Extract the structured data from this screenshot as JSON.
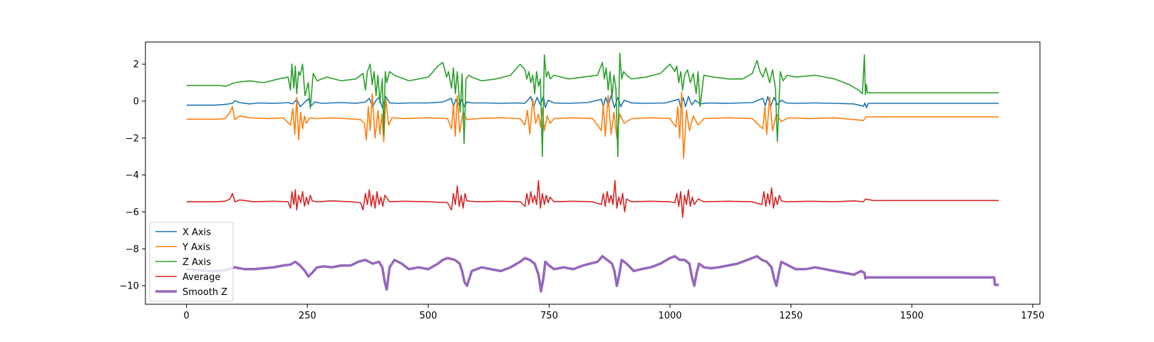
{
  "chart_data": {
    "type": "line",
    "title": "",
    "xlabel": "",
    "ylabel": "",
    "xlim": [
      -85,
      1765
    ],
    "ylim": [
      -11.0,
      3.2
    ],
    "xticks": [
      0,
      250,
      500,
      750,
      1000,
      1250,
      1500,
      1750
    ],
    "yticks": [
      2,
      0,
      -2,
      -4,
      -6,
      -8,
      -10
    ],
    "xtick_labels": [
      "0",
      "250",
      "500",
      "750",
      "1000",
      "1250",
      "1500",
      "1750"
    ],
    "ytick_labels": [
      "2",
      "0",
      "−2",
      "−4",
      "−6",
      "−8",
      "−10"
    ],
    "grid": false,
    "legend_position": "lower-left",
    "series": [
      {
        "name": "X Axis",
        "color": "#1f77b4",
        "x": [
          0,
          60,
          80,
          95,
          100,
          110,
          130,
          150,
          180,
          200,
          210,
          220,
          228,
          235,
          245,
          252,
          258,
          265,
          280,
          300,
          320,
          350,
          370,
          378,
          385,
          392,
          398,
          405,
          412,
          420,
          440,
          460,
          500,
          530,
          548,
          552,
          557,
          562,
          568,
          575,
          580,
          590,
          620,
          650,
          680,
          700,
          712,
          718,
          725,
          732,
          738,
          742,
          748,
          760,
          790,
          830,
          858,
          862,
          867,
          872,
          878,
          885,
          892,
          898,
          905,
          920,
          950,
          990,
          1018,
          1022,
          1027,
          1032,
          1038,
          1045,
          1052,
          1062,
          1080,
          1120,
          1170,
          1192,
          1197,
          1202,
          1208,
          1215,
          1222,
          1230,
          1240,
          1260,
          1300,
          1340,
          1380,
          1400,
          1403,
          1406,
          1410,
          1500,
          1600,
          1680
        ],
        "values": [
          -0.22,
          -0.22,
          -0.18,
          -0.12,
          0.02,
          -0.08,
          -0.15,
          -0.1,
          -0.12,
          -0.1,
          -0.08,
          -0.15,
          0.1,
          -0.3,
          -0.05,
          0.12,
          -0.25,
          -0.05,
          -0.12,
          -0.1,
          -0.08,
          -0.12,
          -0.05,
          0.15,
          -0.3,
          0.05,
          0.2,
          -0.35,
          0.25,
          -0.1,
          -0.12,
          -0.1,
          -0.1,
          -0.05,
          0.15,
          -0.3,
          0.1,
          -0.2,
          0.12,
          -0.3,
          -0.05,
          -0.1,
          -0.1,
          -0.12,
          -0.1,
          -0.12,
          0.25,
          -0.3,
          0.2,
          -0.2,
          0.28,
          -0.35,
          0.05,
          -0.1,
          -0.12,
          -0.08,
          0.1,
          -0.3,
          0.2,
          -0.25,
          0.3,
          -0.35,
          0.2,
          -0.3,
          0.05,
          -0.1,
          -0.12,
          -0.1,
          0.1,
          -0.35,
          0.2,
          -0.3,
          0.25,
          -0.2,
          0.05,
          -0.15,
          -0.1,
          -0.12,
          -0.08,
          0.15,
          -0.25,
          0.25,
          -0.3,
          0.2,
          -0.2,
          0.05,
          -0.1,
          -0.12,
          -0.1,
          -0.12,
          -0.15,
          -0.28,
          -0.1,
          -0.35,
          -0.12,
          -0.12,
          -0.12,
          -0.12
        ]
      },
      {
        "name": "Y Axis",
        "color": "#ff7f0e",
        "x": [
          0,
          60,
          80,
          90,
          95,
          100,
          110,
          130,
          170,
          200,
          215,
          220,
          224,
          228,
          232,
          236,
          240,
          244,
          248,
          255,
          270,
          300,
          330,
          360,
          368,
          372,
          376,
          380,
          384,
          390,
          396,
          400,
          404,
          408,
          412,
          418,
          425,
          450,
          500,
          540,
          548,
          552,
          556,
          560,
          565,
          572,
          580,
          600,
          650,
          690,
          700,
          705,
          710,
          716,
          722,
          728,
          732,
          736,
          740,
          746,
          752,
          760,
          800,
          840,
          858,
          862,
          866,
          872,
          878,
          884,
          890,
          896,
          905,
          920,
          960,
          1000,
          1012,
          1016,
          1020,
          1024,
          1028,
          1034,
          1040,
          1048,
          1058,
          1070,
          1120,
          1170,
          1192,
          1196,
          1200,
          1206,
          1212,
          1220,
          1230,
          1245,
          1290,
          1340,
          1380,
          1400,
          1405,
          1420,
          1500,
          1600,
          1680
        ],
        "values": [
          -0.98,
          -0.98,
          -0.95,
          -0.6,
          -0.3,
          -1.0,
          -0.8,
          -0.9,
          -0.95,
          -0.9,
          -1.3,
          -0.4,
          -1.8,
          0.2,
          -2.1,
          -0.6,
          -1.5,
          -0.8,
          -1.2,
          -0.9,
          -0.95,
          -0.9,
          -0.95,
          -1.0,
          -1.2,
          -2.1,
          -0.3,
          -1.6,
          0.4,
          -2.0,
          -0.5,
          -1.8,
          -0.7,
          -2.2,
          0.15,
          -1.3,
          -0.9,
          -0.95,
          -0.9,
          -0.95,
          -1.5,
          -0.2,
          -1.9,
          0.3,
          -1.7,
          -0.6,
          -1.0,
          -0.95,
          -0.9,
          -0.95,
          -1.3,
          -0.5,
          -1.8,
          0.1,
          -1.2,
          -0.7,
          -1.4,
          -0.4,
          -1.6,
          -0.8,
          -1.2,
          -0.95,
          -0.9,
          -0.95,
          -1.6,
          -0.2,
          -1.9,
          0.3,
          -1.8,
          -0.6,
          -2.0,
          -0.7,
          -1.2,
          -0.95,
          -0.9,
          -0.95,
          -1.4,
          -0.3,
          -2.0,
          0.5,
          -3.1,
          -0.5,
          -1.6,
          -0.8,
          -1.3,
          -0.95,
          -0.9,
          -0.95,
          -1.5,
          -0.3,
          -1.8,
          0.2,
          -1.6,
          -0.7,
          -1.1,
          -0.9,
          -0.95,
          -0.9,
          -1.0,
          -1.05,
          -0.85,
          -0.85,
          -0.85,
          -0.85,
          -0.85
        ]
      },
      {
        "name": "Z Axis",
        "color": "#2ca02c",
        "x": [
          0,
          60,
          70,
          80,
          100,
          130,
          160,
          190,
          210,
          215,
          218,
          222,
          225,
          228,
          232,
          235,
          240,
          245,
          252,
          256,
          262,
          270,
          290,
          320,
          350,
          365,
          370,
          374,
          380,
          384,
          388,
          392,
          396,
          400,
          405,
          408,
          411,
          414,
          420,
          430,
          440,
          460,
          480,
          500,
          520,
          530,
          538,
          542,
          548,
          552,
          556,
          560,
          566,
          570,
          574,
          578,
          584,
          590,
          610,
          640,
          670,
          690,
          700,
          704,
          708,
          712,
          716,
          720,
          724,
          728,
          732,
          736,
          740,
          744,
          748,
          752,
          760,
          790,
          820,
          850,
          860,
          864,
          868,
          872,
          876,
          880,
          884,
          888,
          892,
          896,
          900,
          904,
          910,
          920,
          950,
          980,
          1000,
          1010,
          1014,
          1018,
          1022,
          1026,
          1030,
          1036,
          1042,
          1048,
          1054,
          1058,
          1062,
          1070,
          1090,
          1120,
          1150,
          1170,
          1180,
          1186,
          1192,
          1198,
          1202,
          1206,
          1212,
          1218,
          1222,
          1228,
          1234,
          1242,
          1260,
          1300,
          1340,
          1370,
          1390,
          1398,
          1402,
          1404,
          1406,
          1408,
          1420,
          1500,
          1600,
          1680
        ],
        "values": [
          0.85,
          0.85,
          0.85,
          0.8,
          1.0,
          1.1,
          1.0,
          1.2,
          1.3,
          0.6,
          2.0,
          0.7,
          1.9,
          0.4,
          1.6,
          1.4,
          2.0,
          0.3,
          1.0,
          -0.4,
          1.5,
          1.1,
          1.3,
          1.1,
          1.2,
          1.5,
          0.6,
          1.6,
          2.0,
          0.9,
          1.6,
          0.3,
          1.4,
          -0.1,
          1.2,
          -1.8,
          1.6,
          1.0,
          1.6,
          1.4,
          1.3,
          1.1,
          1.2,
          1.3,
          1.9,
          2.1,
          1.3,
          1.6,
          0.7,
          1.8,
          0.4,
          1.6,
          -0.6,
          1.5,
          -2.3,
          1.2,
          1.4,
          1.3,
          1.1,
          1.2,
          1.4,
          2.0,
          1.7,
          1.2,
          1.6,
          1.0,
          1.4,
          0.4,
          1.6,
          0.8,
          1.2,
          -3.0,
          2.5,
          1.3,
          1.6,
          1.2,
          1.4,
          1.2,
          1.3,
          1.4,
          2.1,
          1.2,
          1.8,
          0.6,
          1.6,
          0.2,
          1.4,
          0.7,
          -3.0,
          2.6,
          1.2,
          1.6,
          1.4,
          1.2,
          1.3,
          1.5,
          2.0,
          1.6,
          1.9,
          1.0,
          1.6,
          0.6,
          1.4,
          1.7,
          1.0,
          1.5,
          0.4,
          1.6,
          -0.3,
          1.4,
          1.3,
          1.2,
          1.2,
          1.5,
          2.2,
          1.6,
          1.3,
          1.8,
          1.4,
          1.0,
          1.7,
          0.7,
          -2.2,
          1.6,
          1.1,
          1.4,
          1.3,
          1.4,
          1.2,
          0.9,
          0.6,
          0.4,
          2.5,
          0.35,
          0.9,
          0.45,
          0.45,
          0.45,
          0.45,
          0.45
        ]
      },
      {
        "name": "Average",
        "color": "#d62728",
        "x": [
          0,
          60,
          80,
          90,
          95,
          100,
          110,
          140,
          180,
          210,
          215,
          218,
          222,
          225,
          228,
          232,
          236,
          240,
          244,
          248,
          252,
          256,
          260,
          270,
          300,
          340,
          360,
          365,
          370,
          374,
          378,
          382,
          386,
          390,
          394,
          398,
          402,
          406,
          410,
          420,
          450,
          500,
          540,
          548,
          552,
          556,
          560,
          564,
          568,
          572,
          576,
          580,
          600,
          650,
          690,
          700,
          704,
          708,
          712,
          716,
          720,
          724,
          728,
          732,
          736,
          740,
          744,
          748,
          752,
          760,
          800,
          840,
          858,
          862,
          866,
          870,
          874,
          878,
          882,
          886,
          890,
          894,
          898,
          902,
          906,
          910,
          920,
          960,
          1000,
          1010,
          1014,
          1018,
          1022,
          1026,
          1030,
          1034,
          1038,
          1042,
          1046,
          1050,
          1058,
          1070,
          1120,
          1170,
          1190,
          1194,
          1198,
          1202,
          1206,
          1210,
          1214,
          1218,
          1222,
          1226,
          1230,
          1240,
          1290,
          1340,
          1380,
          1400,
          1404,
          1420,
          1500,
          1600,
          1680
        ],
        "values": [
          -5.45,
          -5.45,
          -5.42,
          -5.3,
          -5.0,
          -5.45,
          -5.35,
          -5.45,
          -5.42,
          -5.45,
          -5.8,
          -4.9,
          -5.6,
          -4.8,
          -5.9,
          -5.1,
          -5.5,
          -4.9,
          -5.7,
          -5.2,
          -5.6,
          -5.1,
          -5.4,
          -5.45,
          -5.4,
          -5.45,
          -5.5,
          -5.9,
          -5.0,
          -5.6,
          -4.8,
          -5.7,
          -5.1,
          -5.8,
          -4.9,
          -5.6,
          -5.2,
          -5.7,
          -5.1,
          -5.45,
          -5.42,
          -5.45,
          -5.5,
          -5.9,
          -5.0,
          -5.6,
          -4.6,
          -5.7,
          -5.1,
          -5.8,
          -5.0,
          -5.4,
          -5.45,
          -5.42,
          -5.45,
          -5.7,
          -5.0,
          -5.6,
          -4.9,
          -5.5,
          -5.1,
          -5.6,
          -4.3,
          -5.8,
          -5.0,
          -5.6,
          -5.1,
          -5.5,
          -5.2,
          -5.45,
          -5.42,
          -5.45,
          -5.6,
          -5.0,
          -5.7,
          -4.9,
          -5.5,
          -5.1,
          -5.6,
          -4.3,
          -5.8,
          -5.2,
          -5.6,
          -5.0,
          -6.0,
          -5.3,
          -5.45,
          -5.42,
          -5.45,
          -5.5,
          -5.0,
          -5.7,
          -4.9,
          -6.3,
          -5.1,
          -5.6,
          -4.8,
          -5.7,
          -5.2,
          -5.6,
          -5.3,
          -5.45,
          -5.42,
          -5.45,
          -5.6,
          -4.9,
          -5.7,
          -5.0,
          -5.6,
          -4.7,
          -5.8,
          -5.2,
          -5.6,
          -5.1,
          -5.4,
          -5.45,
          -5.42,
          -5.45,
          -5.4,
          -5.45,
          -5.3,
          -5.38,
          -5.38,
          -5.38,
          -5.38
        ]
      },
      {
        "name": "Smooth Z",
        "color": "#9467bd",
        "width": 3.5,
        "x": [
          0,
          20,
          40,
          60,
          80,
          100,
          120,
          140,
          160,
          180,
          200,
          215,
          225,
          235,
          245,
          252,
          260,
          270,
          285,
          300,
          320,
          340,
          355,
          370,
          385,
          398,
          405,
          410,
          414,
          420,
          430,
          445,
          460,
          480,
          500,
          520,
          530,
          540,
          555,
          565,
          570,
          575,
          580,
          590,
          610,
          630,
          650,
          670,
          690,
          700,
          710,
          720,
          728,
          733,
          738,
          742,
          750,
          760,
          780,
          800,
          820,
          850,
          860,
          870,
          880,
          885,
          890,
          895,
          900,
          910,
          925,
          940,
          960,
          980,
          1000,
          1010,
          1020,
          1030,
          1040,
          1045,
          1050,
          1055,
          1060,
          1070,
          1085,
          1100,
          1120,
          1140,
          1160,
          1180,
          1190,
          1200,
          1210,
          1215,
          1220,
          1225,
          1230,
          1245,
          1260,
          1280,
          1300,
          1320,
          1340,
          1360,
          1380,
          1395,
          1402,
          1404,
          1406,
          1410,
          1450,
          1500,
          1550,
          1600,
          1650,
          1670,
          1672,
          1680
        ],
        "values": [
          -9.1,
          -9.15,
          -9.2,
          -9.2,
          -9.15,
          -9.0,
          -9.1,
          -9.1,
          -9.05,
          -9.0,
          -8.9,
          -8.85,
          -8.7,
          -8.9,
          -9.2,
          -9.5,
          -9.3,
          -9.0,
          -8.95,
          -9.0,
          -8.9,
          -8.9,
          -8.7,
          -8.6,
          -8.8,
          -8.7,
          -9.0,
          -9.8,
          -10.2,
          -9.0,
          -8.6,
          -8.8,
          -9.1,
          -9.0,
          -9.1,
          -8.8,
          -8.6,
          -8.5,
          -8.6,
          -8.8,
          -9.2,
          -9.8,
          -10.0,
          -9.2,
          -9.0,
          -9.1,
          -9.2,
          -9.0,
          -8.7,
          -8.5,
          -8.6,
          -8.8,
          -9.4,
          -10.3,
          -9.6,
          -8.7,
          -8.9,
          -9.1,
          -9.0,
          -9.1,
          -8.9,
          -8.7,
          -8.4,
          -8.6,
          -8.8,
          -9.2,
          -10.0,
          -9.4,
          -8.6,
          -8.8,
          -9.2,
          -9.1,
          -9.0,
          -8.8,
          -8.5,
          -8.4,
          -8.6,
          -8.6,
          -8.8,
          -9.5,
          -10.0,
          -9.3,
          -8.8,
          -9.0,
          -9.05,
          -9.0,
          -8.9,
          -8.8,
          -8.6,
          -8.4,
          -8.6,
          -8.7,
          -9.0,
          -9.6,
          -10.0,
          -9.3,
          -8.7,
          -8.9,
          -9.1,
          -9.1,
          -9.0,
          -9.1,
          -9.2,
          -9.3,
          -9.4,
          -9.2,
          -9.3,
          -9.6,
          -9.55,
          -9.55,
          -9.55,
          -9.55,
          -9.55,
          -9.55,
          -9.55,
          -9.55,
          -9.95,
          -9.95
        ]
      }
    ]
  }
}
